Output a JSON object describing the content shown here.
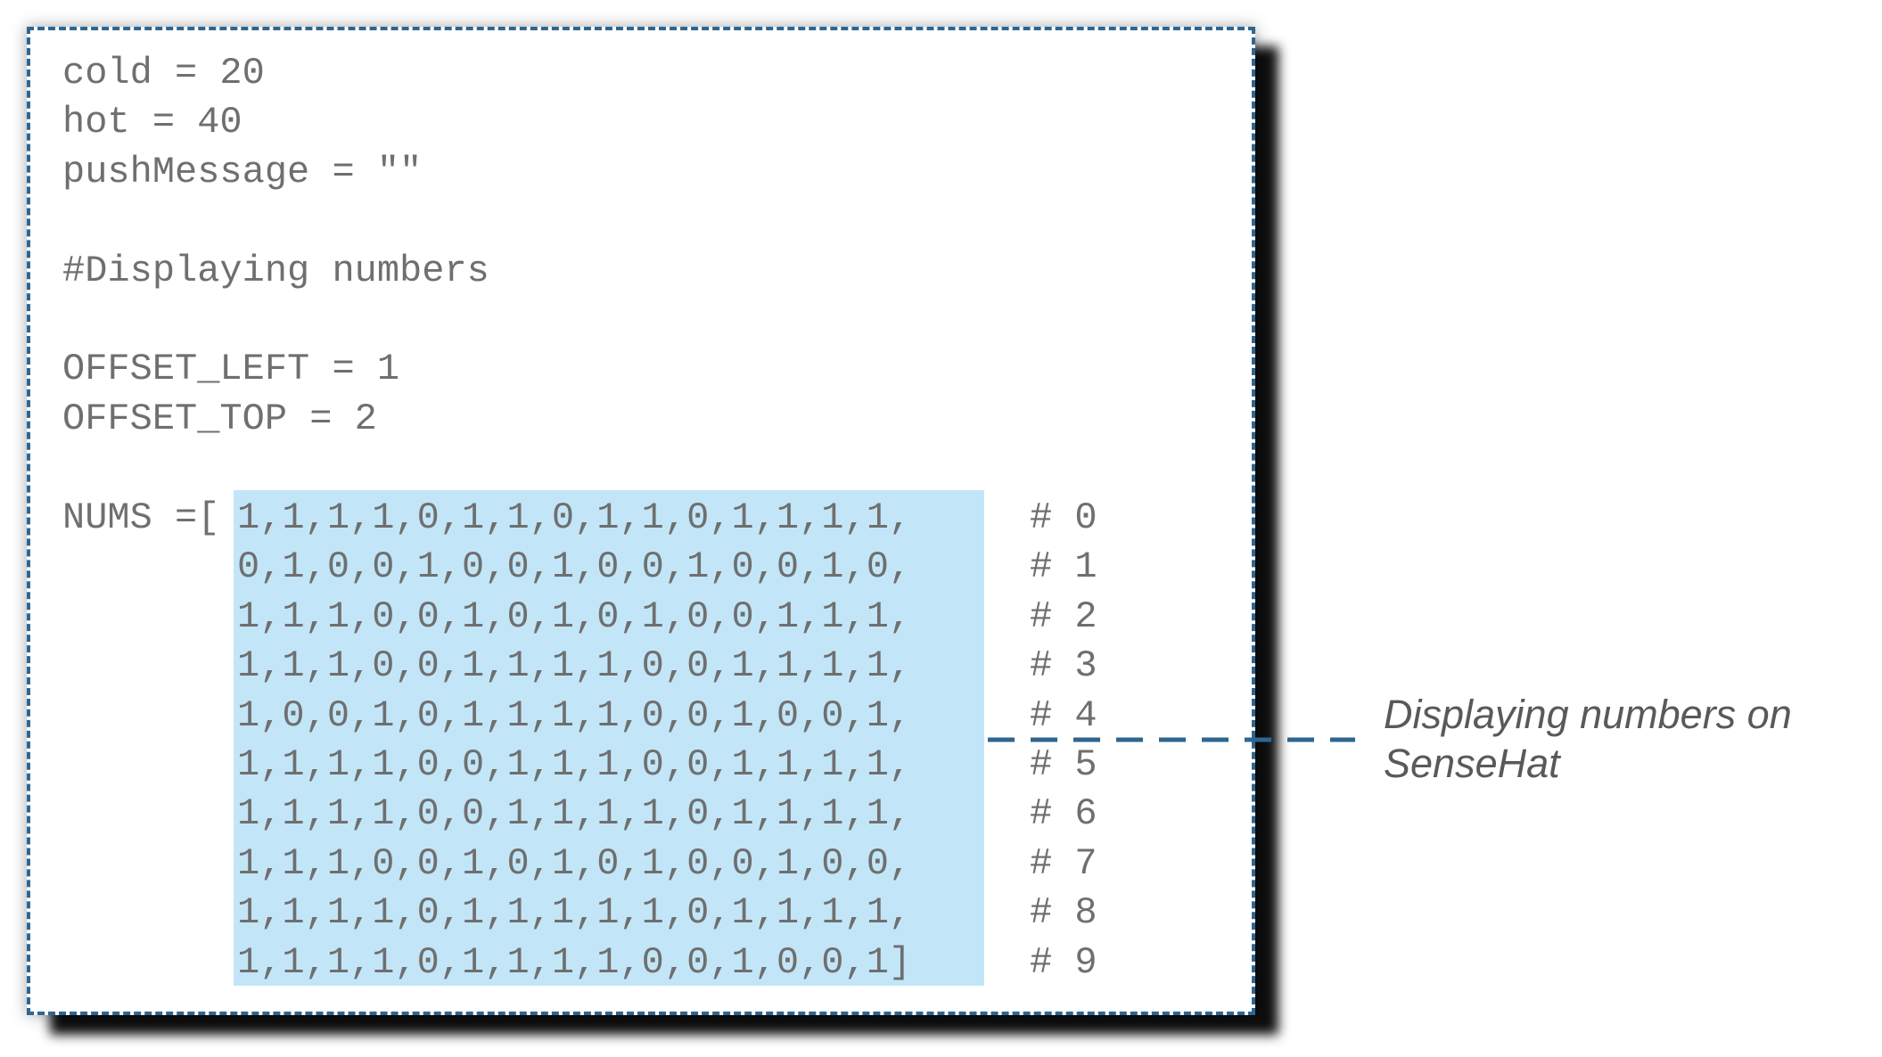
{
  "code": {
    "lines": [
      "cold = 20",
      "hot = 40",
      "pushMessage = \"\"",
      "",
      "#Displaying numbers",
      "",
      "OFFSET_LEFT = 1",
      "OFFSET_TOP = 2",
      ""
    ],
    "nums_prefix": "NUMS =[",
    "nums_rows": [
      "1,1,1,1,0,1,1,0,1,1,0,1,1,1,1,",
      "0,1,0,0,1,0,0,1,0,0,1,0,0,1,0,",
      "1,1,1,0,0,1,0,1,0,1,0,0,1,1,1,",
      "1,1,1,0,0,1,1,1,1,0,0,1,1,1,1,",
      "1,0,0,1,0,1,1,1,1,0,0,1,0,0,1,",
      "1,1,1,1,0,0,1,1,1,0,0,1,1,1,1,",
      "1,1,1,1,0,0,1,1,1,1,0,1,1,1,1,",
      "1,1,1,0,0,1,0,1,0,1,0,0,1,0,0,",
      "1,1,1,1,0,1,1,1,1,1,0,1,1,1,1,",
      "1,1,1,1,0,1,1,1,1,0,0,1,0,0,1]"
    ],
    "nums_comments": [
      "# 0",
      "# 1",
      "# 2",
      "# 3",
      "# 4",
      "# 5",
      "# 6",
      "# 7",
      "# 8",
      "# 9"
    ]
  },
  "callout": {
    "label": "Displaying numbers on SenseHat"
  },
  "colors": {
    "border": "#2f6690",
    "highlight": "#c2e6f8",
    "code_text": "#6f6f6f",
    "callout_text": "#595959"
  }
}
